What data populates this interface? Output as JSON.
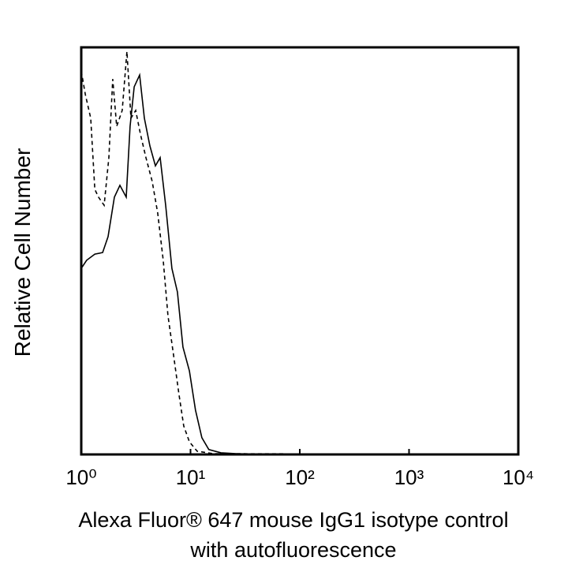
{
  "chart_data": {
    "type": "line",
    "xlabel": [
      "Alexa Fluor® 647 mouse IgG1 isotype control",
      "with autofluorescence"
    ],
    "ylabel": "Relative Cell Number",
    "xscale": "log",
    "xlim": [
      1,
      10000
    ],
    "xticks": [
      {
        "value": 1,
        "label": "10⁰"
      },
      {
        "value": 10,
        "label": "10¹"
      },
      {
        "value": 100,
        "label": "10²"
      },
      {
        "value": 1000,
        "label": "10³"
      },
      {
        "value": 10000,
        "label": "10⁴"
      }
    ],
    "ylim": [
      0,
      100
    ],
    "series": [
      {
        "color": "#000000",
        "line_style": "solid",
        "x": [
          1,
          1.12,
          1.33,
          1.57,
          1.76,
          2.01,
          2.26,
          2.58,
          2.8,
          3.05,
          3.42,
          3.78,
          4.25,
          4.77,
          5.27,
          5.92,
          6.76,
          7.59,
          8.53,
          9.77,
          11.1,
          12.7,
          14.7,
          19.0,
          26.4,
          55.7,
          10000
        ],
        "values": [
          45.7,
          47.7,
          49.2,
          49.6,
          53.5,
          63.2,
          66.1,
          63.2,
          80.6,
          90.3,
          93.2,
          82.6,
          75.8,
          70.9,
          72.9,
          61.2,
          45.7,
          39.9,
          26.4,
          20.5,
          10.9,
          4.1,
          1.2,
          0.4,
          0.2,
          0,
          0
        ]
      },
      {
        "color": "#000000",
        "line_style": "dashed",
        "x": [
          1,
          1.09,
          1.22,
          1.33,
          1.44,
          1.62,
          1.79,
          1.94,
          2.11,
          2.37,
          2.62,
          2.85,
          3.15,
          3.48,
          3.91,
          4.46,
          5.01,
          5.63,
          6.22,
          6.99,
          7.85,
          8.67,
          9.77,
          11.5,
          16.0,
          10000
        ],
        "values": [
          94.2,
          88.4,
          82.6,
          65.1,
          63.2,
          61.2,
          72.9,
          92.2,
          80.6,
          84.5,
          99.0,
          82.6,
          84.5,
          78.7,
          72.9,
          67.1,
          59.3,
          47.7,
          34.1,
          24.4,
          14.7,
          7.0,
          3.1,
          0.8,
          0.2,
          0
        ]
      }
    ]
  }
}
